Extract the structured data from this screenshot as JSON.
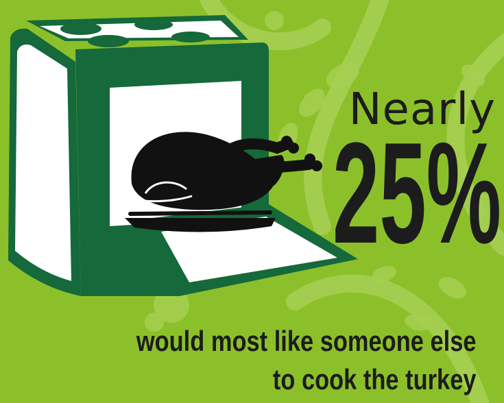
{
  "headline": {
    "prefix": "Nearly",
    "stat": "25%"
  },
  "caption": {
    "line1": "would most like someone else",
    "line2": "to cook the turkey"
  },
  "icons": [
    "oven-icon",
    "roast-turkey-icon"
  ],
  "colors": {
    "background": "#8cc02a",
    "pattern": "#a6cf52",
    "oven_green": "#15693a",
    "white": "#ffffff",
    "text": "#1c1c1c"
  }
}
